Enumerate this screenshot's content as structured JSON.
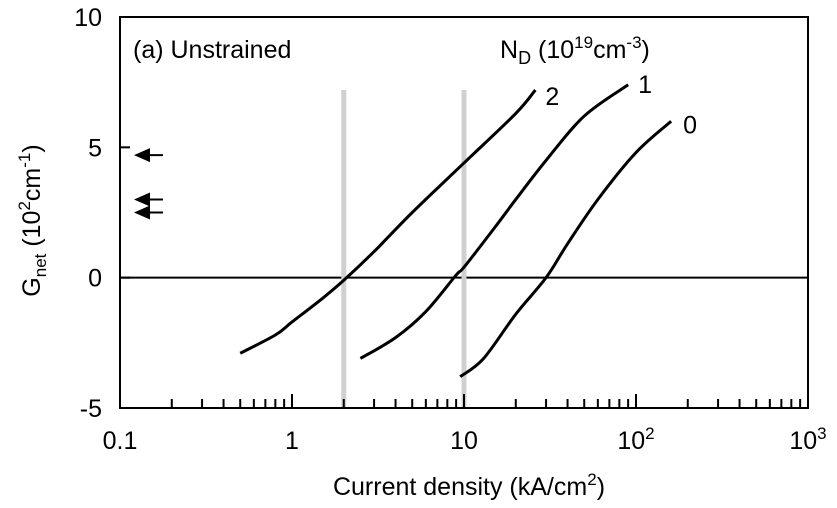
{
  "chart_data": {
    "type": "line",
    "title": "",
    "panel_label": "(a) Unstrained",
    "xlabel": {
      "main": "Current density (kA/cm",
      "sup": "2",
      "end": ")"
    },
    "ylabel": {
      "main": "G",
      "sub": "net",
      "rest": " (10",
      "sup1": "2",
      "unit": "cm",
      "sup2": "-1",
      "end": ")"
    },
    "legend_title": {
      "main": "N",
      "sub": "D",
      "rest": " (10",
      "sup1": "19",
      "unit": "cm",
      "sup2": "-3",
      "end": ")"
    },
    "x_scale": "log",
    "xlim": [
      0.1,
      1000
    ],
    "ylim": [
      -5,
      10
    ],
    "x_ticks": [
      {
        "value": 0.1,
        "label": "0.1",
        "sup": ""
      },
      {
        "value": 1,
        "label": "1",
        "sup": ""
      },
      {
        "value": 10,
        "label": "10",
        "sup": ""
      },
      {
        "value": 100,
        "label": "10",
        "sup": "2"
      },
      {
        "value": 1000,
        "label": "10",
        "sup": "3"
      }
    ],
    "y_ticks": [
      {
        "value": -5,
        "label": "-5"
      },
      {
        "value": 0,
        "label": "0"
      },
      {
        "value": 5,
        "label": "5"
      },
      {
        "value": 10,
        "label": "10"
      }
    ],
    "reference_lines": [
      {
        "orientation": "horizontal",
        "y": 0,
        "color": "#000000"
      },
      {
        "orientation": "vertical",
        "x": 2,
        "color": "#d0d0d0"
      },
      {
        "orientation": "vertical",
        "x": 10,
        "color": "#d0d0d0"
      }
    ],
    "arrows_y": [
      4.7,
      3.0,
      2.5
    ],
    "series": [
      {
        "name": "2",
        "x": [
          0.5,
          0.8,
          1.0,
          1.5,
          2.0,
          3.0,
          5.0,
          10,
          20,
          26
        ],
        "y": [
          -2.9,
          -2.2,
          -1.7,
          -0.8,
          -0.1,
          1.0,
          2.5,
          4.4,
          6.3,
          7.2
        ]
      },
      {
        "name": "1",
        "x": [
          2.5,
          4.0,
          6.0,
          9.0,
          10,
          15,
          20,
          30,
          50,
          90
        ],
        "y": [
          -3.1,
          -2.3,
          -1.3,
          0.1,
          0.4,
          1.9,
          3.0,
          4.5,
          6.2,
          7.4
        ]
      },
      {
        "name": "0",
        "x": [
          9.5,
          13,
          20,
          30,
          40,
          60,
          100,
          160
        ],
        "y": [
          -3.8,
          -3.1,
          -1.4,
          0.0,
          1.3,
          3.0,
          4.8,
          6.0
        ]
      }
    ],
    "grid": false,
    "colors": {
      "curve": "#000000",
      "guide": "#d0d0d0",
      "axis": "#000000"
    }
  }
}
